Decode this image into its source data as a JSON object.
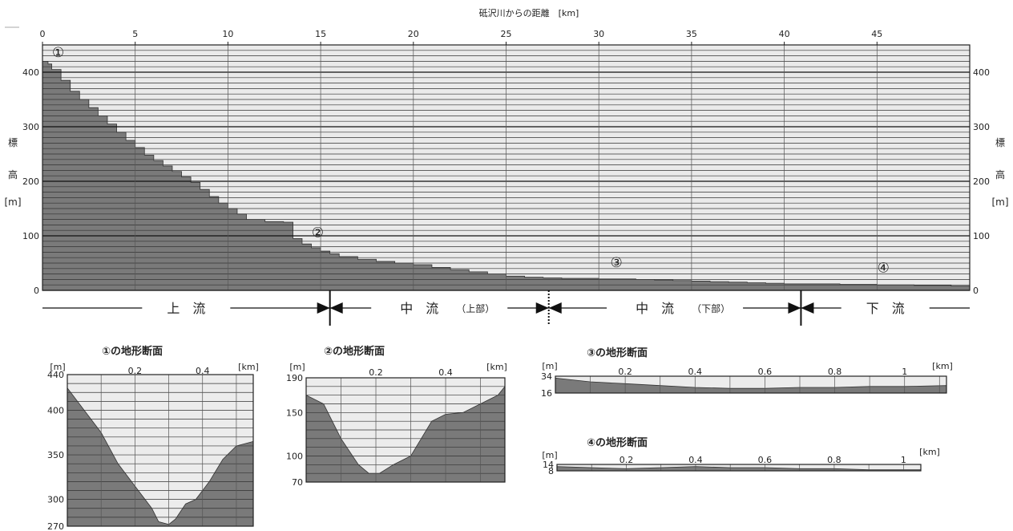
{
  "chart_data": [
    {
      "type": "area",
      "title": "",
      "xlabel": "砥沢川からの距離　[km]",
      "ylabel_left": [
        "標",
        "高",
        "[m]"
      ],
      "ylabel_right": [
        "標",
        "高",
        "[m]"
      ],
      "xlim": [
        0,
        50
      ],
      "ylim": [
        0,
        450
      ],
      "x_ticks": [
        0,
        5,
        10,
        15,
        20,
        25,
        30,
        35,
        40,
        45
      ],
      "y_ticks": [
        0,
        100,
        200,
        300,
        400
      ],
      "grid_step_y": 10,
      "fill_color": "#7a7a7a",
      "plot_bg": "#eaeaea",
      "x": [
        0,
        0.3,
        0.5,
        1,
        1.5,
        2,
        2.5,
        3,
        3.5,
        4,
        4.5,
        5,
        5.5,
        6,
        6.5,
        7,
        7.5,
        8,
        8.5,
        9,
        9.5,
        10,
        10.5,
        11,
        12,
        13,
        13.5,
        13.51,
        14,
        14.5,
        15,
        15.5,
        16,
        17,
        18,
        19,
        20,
        21,
        22,
        23,
        24,
        25,
        26,
        27,
        28,
        29,
        30,
        31,
        32,
        33,
        34,
        35,
        36,
        37,
        38,
        39,
        40,
        41,
        42,
        43,
        44,
        45,
        46,
        47,
        48,
        49,
        50
      ],
      "values": [
        420,
        415,
        405,
        385,
        365,
        350,
        335,
        320,
        305,
        290,
        275,
        262,
        248,
        238,
        228,
        218,
        208,
        198,
        185,
        172,
        160,
        150,
        140,
        130,
        126,
        125,
        125,
        95,
        85,
        78,
        72,
        67,
        62,
        57,
        53,
        50,
        47,
        42,
        38,
        34,
        30,
        26,
        24,
        23,
        22,
        22,
        21,
        21,
        20,
        19,
        18,
        17,
        16,
        15,
        14,
        13,
        12,
        12,
        12,
        11,
        11,
        10,
        10,
        9,
        9,
        8,
        8
      ],
      "markers": [
        {
          "label": "①",
          "x": 0.5,
          "y": 425
        },
        {
          "label": "②",
          "x": 14.5,
          "y": 95
        },
        {
          "label": "③",
          "x": 30.6,
          "y": 40
        },
        {
          "label": "④",
          "x": 45.0,
          "y": 30
        }
      ],
      "zones": [
        {
          "label": "上　流",
          "sub": "",
          "from": 0,
          "to": 15.5
        },
        {
          "label": "中　流",
          "sub": "（上部）",
          "from": 15.5,
          "to": 27.3
        },
        {
          "label": "中　流",
          "sub": "（下部）",
          "from": 27.3,
          "to": 40.9
        },
        {
          "label": "下　流",
          "sub": "",
          "from": 40.9,
          "to": 50
        }
      ]
    },
    {
      "type": "area",
      "title": "①の地形断面",
      "ylabel": "[m]",
      "xlabel": "[km]",
      "xlim": [
        0,
        0.55
      ],
      "ylim": [
        270,
        440
      ],
      "y_ticks": [
        270,
        300,
        350,
        400,
        440
      ],
      "x_ticks": [
        0.2,
        0.4
      ],
      "x": [
        0,
        0.05,
        0.1,
        0.15,
        0.2,
        0.25,
        0.27,
        0.3,
        0.32,
        0.35,
        0.38,
        0.42,
        0.46,
        0.5,
        0.55
      ],
      "values": [
        425,
        400,
        375,
        340,
        315,
        290,
        275,
        272,
        278,
        295,
        300,
        320,
        345,
        360,
        365
      ]
    },
    {
      "type": "area",
      "title": "②の地形断面",
      "ylabel": "[m]",
      "xlabel": "[km]",
      "xlim": [
        0,
        0.57
      ],
      "ylim": [
        70,
        190
      ],
      "y_ticks": [
        70,
        100,
        150,
        190
      ],
      "x_ticks": [
        0.2,
        0.4
      ],
      "x": [
        0,
        0.05,
        0.1,
        0.15,
        0.18,
        0.21,
        0.25,
        0.3,
        0.33,
        0.36,
        0.4,
        0.45,
        0.5,
        0.55,
        0.57
      ],
      "values": [
        170,
        160,
        120,
        90,
        80,
        80,
        90,
        100,
        120,
        140,
        148,
        150,
        160,
        170,
        180
      ]
    },
    {
      "type": "area",
      "title": "③の地形断面",
      "ylabel": "[m]",
      "xlabel": "[km]",
      "xlim": [
        0,
        1.12
      ],
      "ylim": [
        16,
        34
      ],
      "y_ticks": [
        16,
        34
      ],
      "x_ticks": [
        0.2,
        0.4,
        0.6,
        0.8,
        1.0
      ],
      "x": [
        0,
        0.1,
        0.2,
        0.3,
        0.4,
        0.5,
        0.6,
        0.7,
        0.8,
        0.9,
        1.0,
        1.12
      ],
      "values": [
        32,
        28,
        26,
        24,
        22,
        21,
        21,
        22,
        22,
        23,
        23,
        24
      ]
    },
    {
      "type": "area",
      "title": "④の地形断面",
      "ylabel": "[m]",
      "xlabel": "[km]",
      "xlim": [
        0,
        1.05
      ],
      "ylim": [
        8,
        14
      ],
      "y_ticks": [
        8,
        14
      ],
      "x_ticks": [
        0.2,
        0.4,
        0.6,
        0.8,
        1.0
      ],
      "x": [
        0,
        0.1,
        0.2,
        0.3,
        0.4,
        0.5,
        0.6,
        0.7,
        0.8,
        0.9,
        1.05
      ],
      "values": [
        12,
        11,
        10,
        11,
        12,
        11,
        11,
        10,
        10,
        9,
        9
      ]
    }
  ]
}
